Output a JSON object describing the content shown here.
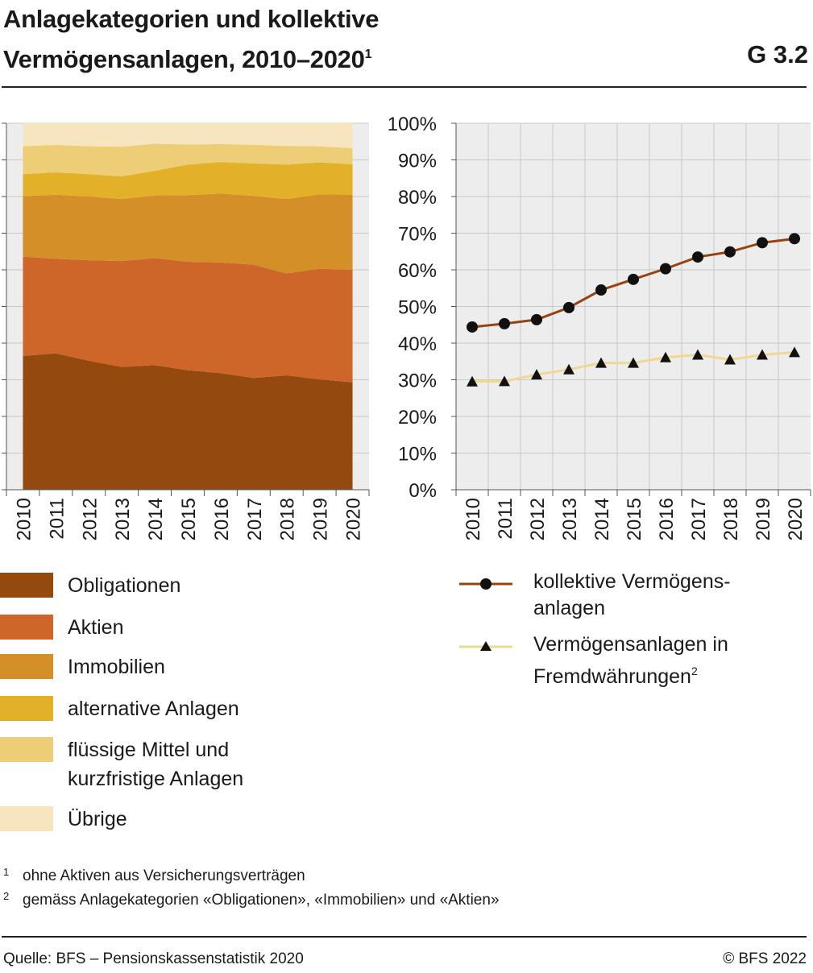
{
  "header": {
    "title_line1": "Anlagekategorien und kollektive",
    "title_line2": "Vermögensanlagen, 2010–2020",
    "title_sup": "1",
    "graph_number": "G 3.2"
  },
  "colors": {
    "Obligationen": "#94490e",
    "Aktien": "#cd6628",
    "Immobilien": "#d58f28",
    "alternative Anlagen": "#e2b128",
    "flüssige Mittel": "#edcd75",
    "Übrige": "#f6e5bf",
    "line_kollektiv": "#97430f",
    "line_fremd": "#f0d890",
    "plot_bg": "#ededed",
    "grid": "#c8c8c8"
  },
  "chart_data": [
    {
      "type": "area",
      "stacked": true,
      "x": [
        "2010",
        "2011",
        "2012",
        "2013",
        "2014",
        "2015",
        "2016",
        "2017",
        "2018",
        "2019",
        "2020"
      ],
      "ylim": [
        0,
        100
      ],
      "series": [
        {
          "name": "Obligationen",
          "values": [
            36.5,
            37.2,
            35.2,
            33.5,
            34.0,
            32.6,
            31.8,
            30.5,
            31.2,
            30.1,
            29.3
          ]
        },
        {
          "name": "Aktien",
          "values": [
            27.1,
            25.8,
            27.4,
            28.9,
            29.2,
            29.6,
            30.2,
            30.9,
            27.8,
            30.2,
            30.7
          ]
        },
        {
          "name": "Immobilien",
          "values": [
            16.5,
            17.5,
            17.4,
            16.9,
            17.1,
            18.2,
            18.8,
            18.8,
            20.3,
            20.3,
            20.5
          ]
        },
        {
          "name": "alternative Anlagen",
          "values": [
            6.0,
            6.1,
            6.1,
            6.2,
            6.7,
            8.3,
            8.6,
            8.8,
            9.4,
            8.7,
            8.3
          ]
        },
        {
          "name": "flüssige Mittel und kurzfristige Anlagen",
          "values": [
            7.6,
            7.5,
            7.6,
            8.1,
            7.4,
            5.5,
            4.9,
            5.1,
            5.1,
            4.4,
            4.4
          ]
        },
        {
          "name": "Übrige",
          "values": [
            6.3,
            5.9,
            6.3,
            6.4,
            5.6,
            5.8,
            5.7,
            5.9,
            6.2,
            6.3,
            6.8
          ]
        }
      ]
    },
    {
      "type": "line",
      "x": [
        "2010",
        "2011",
        "2012",
        "2013",
        "2014",
        "2015",
        "2016",
        "2017",
        "2018",
        "2019",
        "2020"
      ],
      "ylim": [
        0,
        100
      ],
      "yticks": [
        "0%",
        "10%",
        "20%",
        "30%",
        "40%",
        "50%",
        "60%",
        "70%",
        "80%",
        "90%",
        "100%"
      ],
      "series": [
        {
          "name": "kollektive Vermögens-anlagen",
          "marker": "circle",
          "values": [
            44.4,
            45.3,
            46.4,
            49.7,
            54.5,
            57.4,
            60.3,
            63.5,
            64.9,
            67.4,
            68.5
          ]
        },
        {
          "name": "Vermögensanlagen in Fremdwährungen",
          "marker": "triangle",
          "values": [
            29.5,
            29.6,
            31.4,
            32.8,
            34.6,
            34.6,
            36.1,
            36.8,
            35.5,
            36.8,
            37.5
          ]
        }
      ]
    }
  ],
  "legend_left": [
    {
      "label": "Obligationen",
      "color": "#94490e"
    },
    {
      "label": "Aktien",
      "color": "#cd6628"
    },
    {
      "label": "Immobilien",
      "color": "#d58f28"
    },
    {
      "label": "alternative Anlagen",
      "color": "#e2b128"
    },
    {
      "label": "flüssige Mittel und kurzfristige Anlagen",
      "color": "#edcd75"
    },
    {
      "label": "Übrige",
      "color": "#f6e5bf"
    }
  ],
  "legend_right": [
    {
      "label_line1": "kollektive Vermögens-",
      "label_line2": "anlagen",
      "sup": ""
    },
    {
      "label_line1": "Vermögensanlagen in",
      "label_line2": "Fremdwährungen",
      "sup": "2"
    }
  ],
  "footnotes": [
    {
      "num": "1",
      "text": "ohne Aktiven aus Versicherungsverträgen"
    },
    {
      "num": "2",
      "text": "gemäss Anlagekategorien «Obligationen», «Immobilien» und «Aktien»"
    }
  ],
  "footer": {
    "source": "Quelle: BFS – Pensionskassenstatistik 2020",
    "copyright": "© BFS 2022"
  }
}
